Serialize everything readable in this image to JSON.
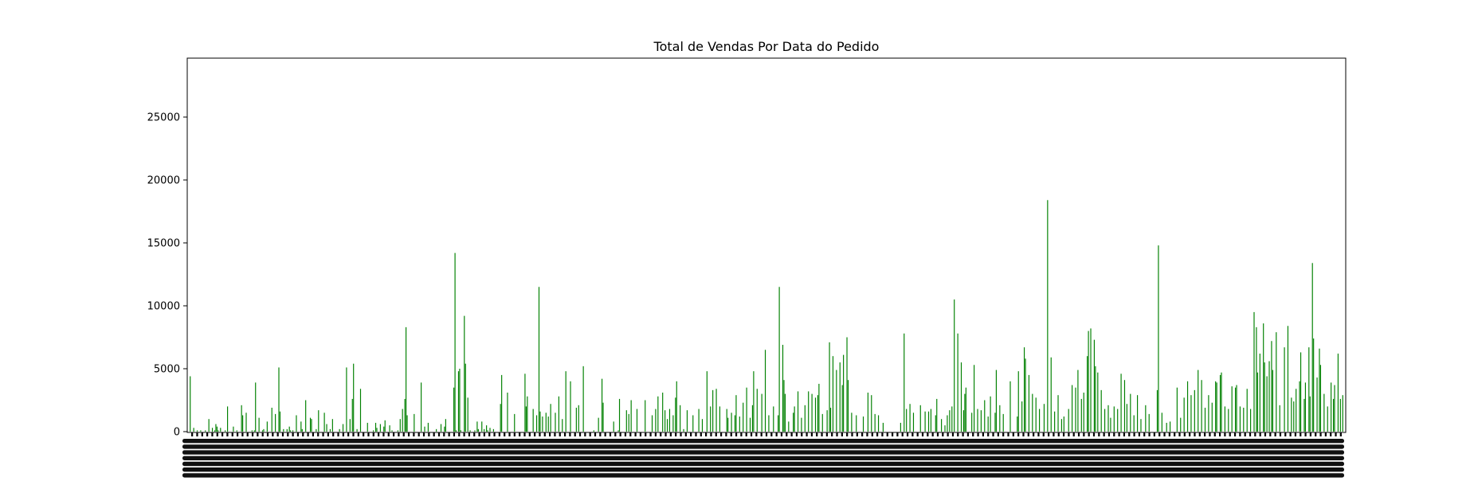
{
  "chart_data": {
    "type": "bar",
    "title": "Total de Vendas Por Data do Pedido",
    "xlabel": "",
    "ylabel": "",
    "ylim": [
      0,
      29500
    ],
    "yticks": [
      0,
      5000,
      10000,
      15000,
      20000,
      25000
    ],
    "grid": false,
    "legend": "none",
    "bar_color": "#008000",
    "n_bars": 915,
    "values": [
      4400,
      0,
      0,
      300,
      0,
      0,
      100,
      0,
      0,
      100,
      0,
      0,
      0,
      100,
      0,
      0,
      1000,
      0,
      0,
      300,
      0,
      100,
      600,
      400,
      100,
      0,
      300,
      0,
      0,
      0,
      100,
      0,
      2000,
      0,
      0,
      0,
      0,
      400,
      0,
      0,
      100,
      0,
      0,
      0,
      2100,
      1300,
      0,
      0,
      1500,
      0,
      0,
      0,
      0,
      100,
      0,
      100,
      3900,
      0,
      0,
      1100,
      0,
      0,
      100,
      200,
      0,
      0,
      800,
      0,
      0,
      0,
      1900,
      0,
      0,
      1400,
      0,
      0,
      5100,
      1600,
      0,
      0,
      200,
      0,
      0,
      200,
      0,
      400,
      100,
      0,
      100,
      0,
      0,
      1300,
      0,
      0,
      0,
      800,
      200,
      0,
      0,
      2500,
      0,
      0,
      0,
      1100,
      1000,
      0,
      0,
      0,
      200,
      0,
      1700,
      0,
      0,
      0,
      0,
      1500,
      0,
      600,
      0,
      0,
      200,
      0,
      1000,
      0,
      0,
      0,
      0,
      0,
      200,
      0,
      0,
      600,
      0,
      0,
      5100,
      0,
      0,
      1000,
      0,
      2600,
      5400,
      0,
      0,
      200,
      0,
      0,
      3400,
      0,
      0,
      0,
      0,
      0,
      700,
      0,
      0,
      0,
      0,
      100,
      0,
      700,
      300,
      0,
      0,
      600,
      0,
      0,
      400,
      900,
      0,
      0,
      0,
      500,
      0,
      100,
      0,
      0,
      0,
      0,
      100,
      0,
      1000,
      0,
      1800,
      0,
      2600,
      8300,
      1300,
      0,
      0,
      0,
      0,
      0,
      1400,
      0,
      0,
      0,
      0,
      0,
      3900,
      0,
      0,
      400,
      0,
      0,
      700,
      0,
      0,
      0,
      0,
      0,
      0,
      200,
      0,
      0,
      0,
      600,
      0,
      0,
      400,
      1000,
      0,
      0,
      0,
      0,
      0,
      0,
      3500,
      14200,
      100,
      0,
      4800,
      5000,
      100,
      0,
      0,
      9200,
      5400,
      0,
      2700,
      0,
      100,
      0,
      0,
      0,
      100,
      0,
      800,
      200,
      0,
      0,
      800,
      0,
      200,
      0,
      500,
      100,
      0,
      300,
      0,
      0,
      200,
      0,
      0,
      0,
      0,
      0,
      2200,
      4500,
      0,
      0,
      0,
      0,
      3100,
      0,
      0,
      0,
      0,
      0,
      1400,
      0,
      0,
      0,
      0,
      0,
      0,
      0,
      0,
      4600,
      2000,
      2800,
      0,
      0,
      0,
      0,
      1800,
      0,
      0,
      1300,
      0,
      11500,
      1600,
      0,
      1200,
      0,
      0,
      1500,
      0,
      1200,
      0,
      2200,
      0,
      0,
      0,
      1500,
      0,
      0,
      2800,
      0,
      0,
      1000,
      0,
      0,
      4800,
      0,
      0,
      0,
      4000,
      0,
      0,
      0,
      0,
      1900,
      0,
      2100,
      0,
      0,
      0,
      5200,
      0,
      0,
      0,
      0,
      0,
      0,
      0,
      0,
      100,
      0,
      0,
      0,
      1100,
      0,
      0,
      4200,
      2300,
      0,
      0,
      0,
      0,
      0,
      0,
      0,
      0,
      800,
      0,
      0,
      0,
      100,
      2600,
      0,
      0,
      0,
      0,
      0,
      1700,
      0,
      1400,
      0,
      2500,
      0,
      0,
      0,
      0,
      1800,
      0,
      0,
      0,
      0,
      0,
      0,
      2500,
      0,
      0,
      0,
      0,
      0,
      1300,
      0,
      0,
      1800,
      0,
      2800,
      0,
      0,
      0,
      3100,
      0,
      1700,
      0,
      1000,
      0,
      1800,
      0,
      0,
      1300,
      0,
      2700,
      4000,
      0,
      0,
      2100,
      0,
      0,
      200,
      0,
      0,
      1700,
      0,
      0,
      0,
      0,
      1300,
      0,
      0,
      0,
      0,
      1800,
      0,
      0,
      1000,
      0,
      0,
      0,
      4800,
      0,
      0,
      2000,
      0,
      3300,
      0,
      0,
      3400,
      0,
      0,
      2000,
      0,
      0,
      0,
      0,
      0,
      1800,
      1100,
      0,
      0,
      1500,
      0,
      0,
      1300,
      2900,
      0,
      0,
      1200,
      0,
      0,
      2300,
      0,
      0,
      3500,
      0,
      0,
      1100,
      0,
      2100,
      4800,
      0,
      0,
      3400,
      0,
      0,
      0,
      3000,
      0,
      0,
      6500,
      0,
      0,
      1300,
      0,
      0,
      0,
      2000,
      0,
      0,
      0,
      1300,
      11500,
      0,
      0,
      6900,
      4100,
      3000,
      0,
      0,
      800,
      0,
      0,
      0,
      1500,
      2000,
      0,
      0,
      3200,
      0,
      0,
      1100,
      0,
      0,
      2100,
      0,
      0,
      3200,
      0,
      0,
      3000,
      0,
      0,
      2700,
      0,
      2900,
      3800,
      0,
      0,
      1400,
      0,
      0,
      0,
      1700,
      0,
      7100,
      1900,
      0,
      6000,
      0,
      0,
      4900,
      0,
      0,
      5500,
      0,
      3700,
      6100,
      0,
      0,
      7500,
      4100,
      0,
      0,
      1500,
      0,
      0,
      0,
      1300,
      0,
      0,
      0,
      0,
      0,
      1200,
      0,
      0,
      0,
      3100,
      0,
      0,
      2900,
      0,
      0,
      1400,
      0,
      0,
      1300,
      0,
      0,
      0,
      700,
      0,
      0,
      0,
      0,
      0,
      0,
      0,
      0,
      0,
      0,
      0,
      0,
      0,
      0,
      700,
      0,
      0,
      7800,
      0,
      1800,
      0,
      0,
      2200,
      0,
      0,
      1500,
      0,
      0,
      0,
      0,
      0,
      2100,
      0,
      0,
      0,
      1600,
      0,
      0,
      1600,
      0,
      1800,
      0,
      0,
      0,
      1300,
      2600,
      0,
      0,
      0,
      1000,
      0,
      0,
      500,
      0,
      1300,
      0,
      1700,
      0,
      2000,
      0,
      10500,
      0,
      0,
      7800,
      0,
      0,
      5500,
      0,
      1700,
      3000,
      3500,
      0,
      0,
      0,
      0,
      1500,
      0,
      5300,
      0,
      0,
      1800,
      0,
      0,
      1700,
      0,
      0,
      2500,
      0,
      0,
      1200,
      0,
      2800,
      0,
      0,
      0,
      1500,
      4900,
      0,
      0,
      2100,
      0,
      0,
      1400,
      0,
      0,
      0,
      0,
      0,
      4000,
      0,
      0,
      0,
      0,
      0,
      1200,
      4800,
      0,
      0,
      2400,
      0,
      6700,
      5800,
      0,
      0,
      4500,
      0,
      0,
      3000,
      0,
      0,
      2700,
      0,
      0,
      1800,
      0,
      0,
      0,
      2200,
      0,
      0,
      18400,
      0,
      0,
      5900,
      0,
      0,
      1600,
      0,
      0,
      2900,
      0,
      0,
      1000,
      0,
      1200,
      0,
      0,
      0,
      1800,
      0,
      0,
      3700,
      0,
      0,
      3500,
      0,
      4900,
      0,
      0,
      2600,
      0,
      3100,
      0,
      0,
      6000,
      8000,
      0,
      8200,
      0,
      0,
      7300,
      5200,
      0,
      4700,
      0,
      0,
      3300,
      0,
      0,
      1800,
      0,
      0,
      2100,
      0,
      1100,
      0,
      0,
      2000,
      0,
      0,
      1800,
      0,
      0,
      4600,
      0,
      0,
      4100,
      0,
      2200,
      0,
      0,
      3000,
      0,
      0,
      1300,
      0,
      0,
      2900,
      0,
      0,
      1000,
      0,
      0,
      0,
      2100,
      0,
      0,
      1400,
      0,
      0,
      0,
      0,
      0,
      0,
      3300,
      14800,
      0,
      0,
      1500,
      0,
      0,
      0,
      700,
      0,
      0,
      800,
      0,
      0,
      0,
      0,
      0,
      3500,
      0,
      0,
      1100,
      0,
      0,
      2700,
      0,
      0,
      4000,
      0,
      0,
      2900,
      0,
      0,
      3300,
      0,
      0,
      4900,
      0,
      0,
      4100,
      0,
      0,
      1900,
      0,
      0,
      2900,
      0,
      0,
      2300,
      0,
      0,
      4000,
      3900,
      0,
      0,
      4500,
      4700,
      0,
      0,
      2000,
      0,
      0,
      1800,
      0,
      0,
      3600,
      0,
      0,
      3500,
      3700,
      0,
      0,
      2000,
      0,
      0,
      1900,
      0,
      0,
      3400,
      0,
      0,
      1800,
      0,
      0,
      9500,
      0,
      8300,
      4700,
      0,
      6200,
      0,
      0,
      8600,
      5500,
      0,
      4400,
      0,
      5600,
      0,
      7200,
      4900,
      0,
      0,
      7900,
      0,
      0,
      2100,
      0,
      0,
      0,
      6700,
      0,
      0,
      8400,
      0,
      0,
      2700,
      0,
      2400,
      0,
      3400,
      0,
      0,
      4000,
      6300,
      0,
      0,
      2600,
      3900,
      0,
      0,
      6700,
      2800,
      0,
      13400,
      7400,
      0,
      0,
      4300,
      0,
      6600,
      5300,
      0,
      0,
      3000,
      0,
      0,
      2000,
      0,
      0,
      3900,
      0,
      2600,
      3700,
      0,
      0,
      6200,
      0,
      2600,
      0,
      2900
    ]
  }
}
